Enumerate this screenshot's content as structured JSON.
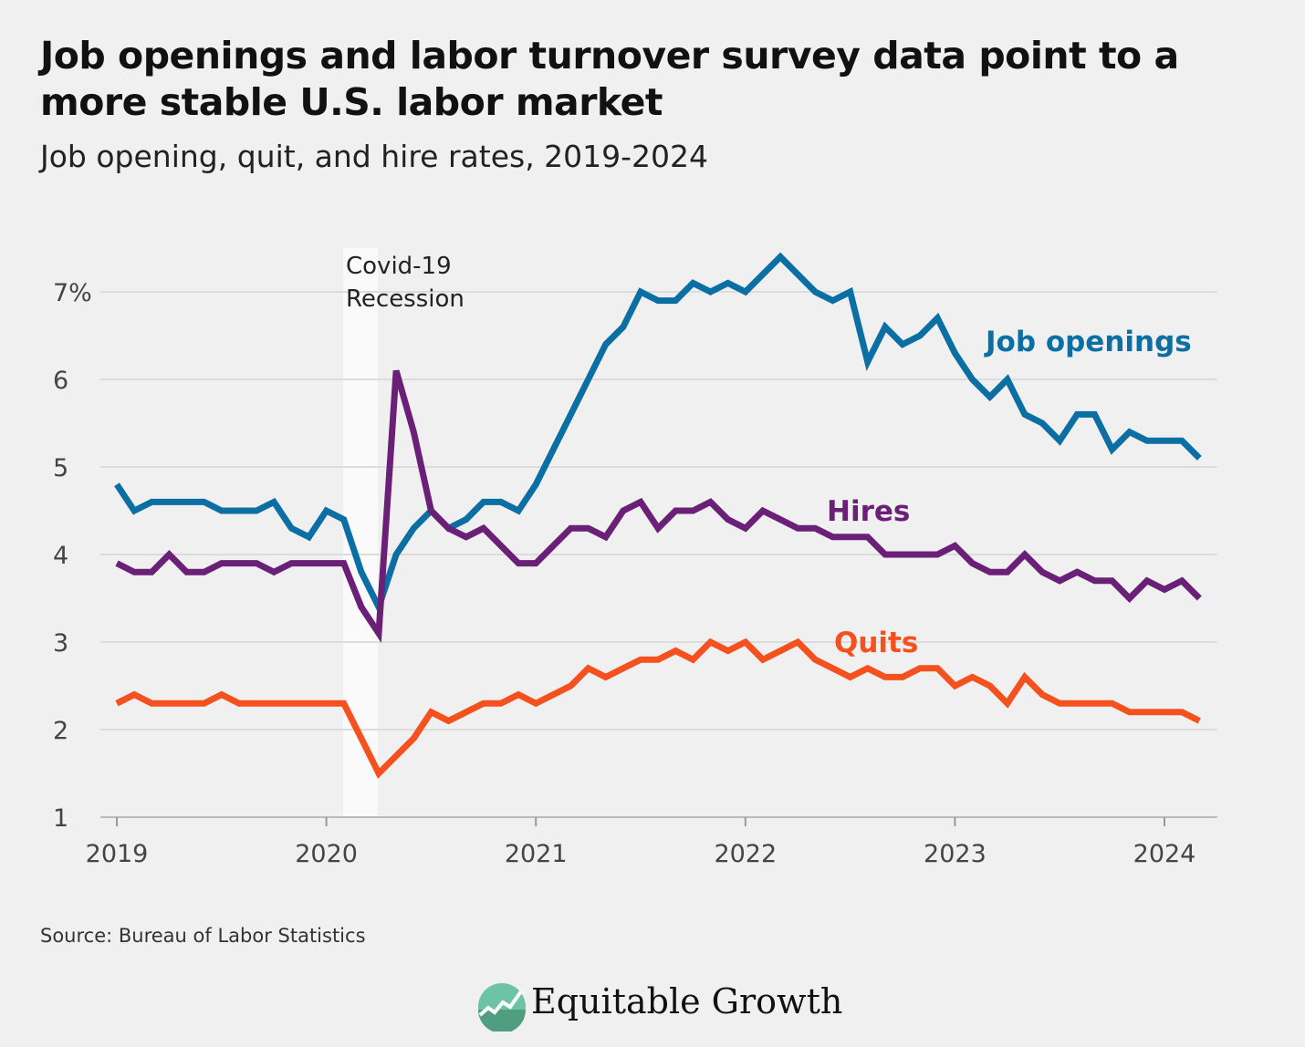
{
  "title": "Job openings and labor turnover survey data point to a more stable U.S. labor market",
  "subtitle": "Job opening, quit, and hire rates, 2019-2024",
  "source": "Source: Bureau of Labor Statistics",
  "logo": {
    "text": "Equitable Growth",
    "icon": "rising-line-circle-icon",
    "color": "#6cc3a5"
  },
  "chart_data": {
    "type": "line",
    "x_start": "2019-01",
    "x_frequency": "monthly",
    "x_ticks": [
      "2019",
      "2020",
      "2021",
      "2022",
      "2023",
      "2024"
    ],
    "y_ticks": [
      "1",
      "2",
      "3",
      "4",
      "5",
      "6",
      "7%"
    ],
    "ylim": [
      1,
      7.6
    ],
    "grid": true,
    "annotation": {
      "label_line1": "Covid-19",
      "label_line2": "Recession",
      "start": "2020-02",
      "end": "2020-04"
    },
    "series": [
      {
        "name": "Job openings",
        "color": "#0b6fa4",
        "values": [
          4.8,
          4.5,
          4.6,
          4.6,
          4.6,
          4.6,
          4.5,
          4.5,
          4.5,
          4.6,
          4.3,
          4.2,
          4.5,
          4.4,
          3.8,
          3.4,
          4.0,
          4.3,
          4.5,
          4.3,
          4.4,
          4.6,
          4.6,
          4.5,
          4.8,
          5.2,
          5.6,
          6.0,
          6.4,
          6.6,
          7.0,
          6.9,
          6.9,
          7.1,
          7.0,
          7.1,
          7.0,
          7.2,
          7.4,
          7.2,
          7.0,
          6.9,
          7.0,
          6.2,
          6.6,
          6.4,
          6.5,
          6.7,
          6.3,
          6.0,
          5.8,
          6.0,
          5.6,
          5.5,
          5.3,
          5.6,
          5.6,
          5.2,
          5.4,
          5.3,
          5.3,
          5.3,
          5.1
        ]
      },
      {
        "name": "Hires",
        "color": "#6b2077",
        "values": [
          3.9,
          3.8,
          3.8,
          4.0,
          3.8,
          3.8,
          3.9,
          3.9,
          3.9,
          3.8,
          3.9,
          3.9,
          3.9,
          3.9,
          3.4,
          3.1,
          6.1,
          5.4,
          4.5,
          4.3,
          4.2,
          4.3,
          4.1,
          3.9,
          3.9,
          4.1,
          4.3,
          4.3,
          4.2,
          4.5,
          4.6,
          4.3,
          4.5,
          4.5,
          4.6,
          4.4,
          4.3,
          4.5,
          4.4,
          4.3,
          4.3,
          4.2,
          4.2,
          4.2,
          4.0,
          4.0,
          4.0,
          4.0,
          4.1,
          3.9,
          3.8,
          3.8,
          4.0,
          3.8,
          3.7,
          3.8,
          3.7,
          3.7,
          3.5,
          3.7,
          3.6,
          3.7,
          3.5
        ]
      },
      {
        "name": "Quits",
        "color": "#f4511e",
        "values": [
          2.3,
          2.4,
          2.3,
          2.3,
          2.3,
          2.3,
          2.4,
          2.3,
          2.3,
          2.3,
          2.3,
          2.3,
          2.3,
          2.3,
          1.9,
          1.5,
          1.7,
          1.9,
          2.2,
          2.1,
          2.2,
          2.3,
          2.3,
          2.4,
          2.3,
          2.4,
          2.5,
          2.7,
          2.6,
          2.7,
          2.8,
          2.8,
          2.9,
          2.8,
          3.0,
          2.9,
          3.0,
          2.8,
          2.9,
          3.0,
          2.8,
          2.7,
          2.6,
          2.7,
          2.6,
          2.6,
          2.7,
          2.7,
          2.5,
          2.6,
          2.5,
          2.3,
          2.6,
          2.4,
          2.3,
          2.3,
          2.3,
          2.3,
          2.2,
          2.2,
          2.2,
          2.2,
          2.1
        ]
      }
    ]
  }
}
